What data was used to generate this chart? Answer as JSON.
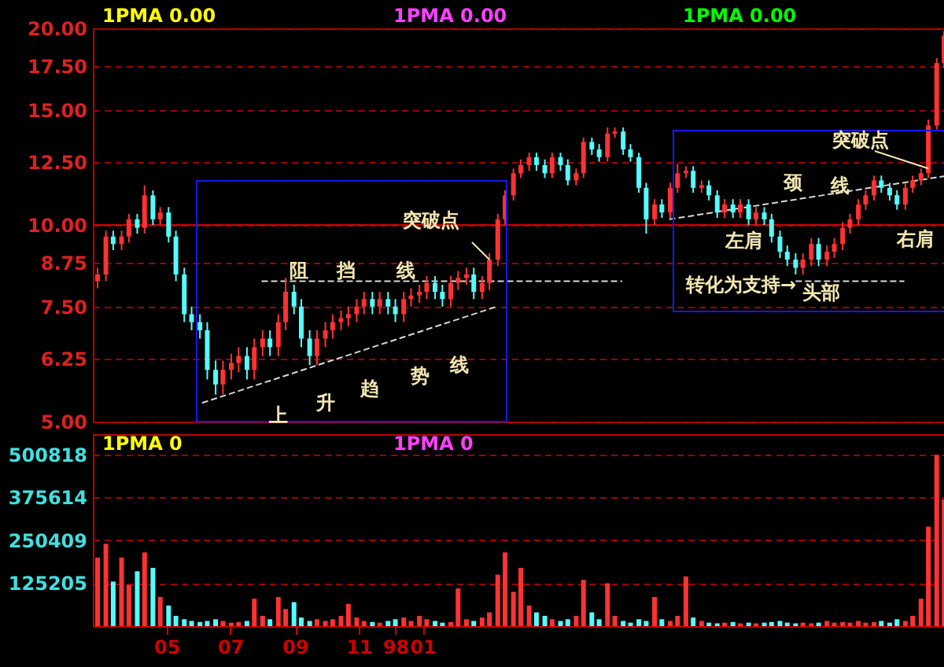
{
  "chart_data": [
    {
      "type": "candlestick",
      "x": [
        "1997-02-24",
        "1997-03-04",
        "1997-03-11",
        "1997-03-19",
        "1997-03-26",
        "1997-04-03",
        "1997-04-10",
        "1997-04-18",
        "1997-04-25",
        "1997-05-03",
        "1997-05-10",
        "1997-05-18",
        "1997-05-25",
        "1997-06-02",
        "1997-06-09",
        "1997-06-17",
        "1997-06-24",
        "1997-07-02",
        "1997-07-09",
        "1997-07-17",
        "1997-07-24",
        "1997-08-01",
        "1997-08-08",
        "1997-08-16",
        "1997-08-23",
        "1997-08-31",
        "1997-09-07",
        "1997-09-15",
        "1997-09-22",
        "1997-09-30",
        "1997-10-07",
        "1997-10-15",
        "1997-10-22",
        "1997-10-30",
        "1997-11-06",
        "1997-11-14",
        "1997-11-21",
        "1997-11-29",
        "1997-12-06",
        "1997-12-14",
        "1997-12-21",
        "1997-12-29",
        "1998-01-05",
        "1998-01-13",
        "1998-01-20",
        "1998-01-28",
        "1998-02-04",
        "1998-02-12",
        "1998-02-19",
        "1998-02-27",
        "1998-03-06",
        "1998-03-14",
        "1998-03-21",
        "1998-03-29",
        "1998-04-05",
        "1998-04-13",
        "1998-04-20",
        "1998-04-28",
        "1998-05-05",
        "1998-05-13",
        "1998-05-20",
        "1998-05-28",
        "1998-06-04",
        "1998-06-12",
        "1998-06-19",
        "1998-06-27",
        "1998-07-04",
        "1998-07-12",
        "1998-07-19",
        "1998-07-27",
        "1998-08-03",
        "1998-08-11",
        "1998-08-18",
        "1998-08-26",
        "1998-09-02",
        "1998-09-10",
        "1998-09-17",
        "1998-09-25",
        "1998-10-02",
        "1998-10-10",
        "1998-10-17",
        "1998-10-25",
        "1998-11-01",
        "1998-11-09",
        "1998-11-16",
        "1998-11-24",
        "1998-12-01",
        "1998-12-09",
        "1998-12-16",
        "1998-12-24",
        "1998-12-31",
        "1999-01-08",
        "1999-01-15",
        "1999-01-23",
        "1999-01-30",
        "1999-02-07",
        "1999-02-14",
        "1999-02-22",
        "1999-03-01",
        "1999-03-09",
        "1999-03-16",
        "1999-03-24",
        "1999-03-31",
        "1999-04-08",
        "1999-04-15",
        "1999-04-23",
        "1999-04-30",
        "1999-05-08",
        "1999-05-15"
      ],
      "ohlc": [
        [
          8.2,
          8.6,
          8.0,
          8.4
        ],
        [
          8.4,
          9.8,
          8.2,
          9.6
        ],
        [
          9.6,
          9.8,
          9.15,
          9.35
        ],
        [
          9.35,
          9.8,
          9.15,
          9.6
        ],
        [
          9.6,
          10.4,
          9.4,
          10.2
        ],
        [
          10.2,
          10.4,
          9.7,
          9.9
        ],
        [
          9.9,
          11.5,
          9.7,
          11.1
        ],
        [
          11.1,
          11.3,
          10.0,
          10.2
        ],
        [
          10.2,
          10.65,
          10.0,
          10.45
        ],
        [
          10.45,
          10.65,
          9.4,
          9.6
        ],
        [
          9.6,
          9.8,
          8.2,
          8.4
        ],
        [
          8.4,
          8.6,
          7.1,
          7.3
        ],
        [
          7.3,
          7.5,
          6.9,
          7.1
        ],
        [
          7.1,
          7.3,
          6.7,
          6.9
        ],
        [
          6.9,
          7.1,
          5.8,
          6.0
        ],
        [
          6.0,
          6.2,
          5.5,
          5.7
        ],
        [
          5.7,
          6.2,
          5.5,
          6.0
        ],
        [
          6.0,
          6.35,
          5.8,
          6.15
        ],
        [
          6.15,
          6.5,
          5.95,
          6.3
        ],
        [
          6.3,
          6.5,
          5.8,
          6.0
        ],
        [
          6.0,
          6.7,
          5.8,
          6.5
        ],
        [
          6.5,
          6.9,
          6.3,
          6.7
        ],
        [
          6.7,
          6.9,
          6.3,
          6.5
        ],
        [
          6.5,
          7.3,
          6.3,
          7.1
        ],
        [
          7.1,
          8.3,
          6.9,
          7.9
        ],
        [
          7.9,
          8.1,
          7.3,
          7.5
        ],
        [
          7.5,
          7.7,
          6.5,
          6.7
        ],
        [
          6.7,
          6.9,
          6.1,
          6.3
        ],
        [
          6.3,
          6.9,
          6.1,
          6.7
        ],
        [
          6.7,
          7.1,
          6.5,
          6.9
        ],
        [
          6.9,
          7.3,
          6.7,
          7.1
        ],
        [
          7.1,
          7.4,
          6.9,
          7.2
        ],
        [
          7.2,
          7.5,
          7.0,
          7.3
        ],
        [
          7.3,
          7.7,
          7.1,
          7.5
        ],
        [
          7.5,
          7.9,
          7.3,
          7.7
        ],
        [
          7.7,
          7.9,
          7.3,
          7.5
        ],
        [
          7.5,
          7.9,
          7.3,
          7.7
        ],
        [
          7.7,
          7.9,
          7.3,
          7.5
        ],
        [
          7.5,
          7.7,
          7.1,
          7.3
        ],
        [
          7.3,
          7.9,
          7.1,
          7.7
        ],
        [
          7.7,
          8.0,
          7.5,
          7.8
        ],
        [
          7.8,
          8.1,
          7.6,
          7.9
        ],
        [
          7.9,
          8.35,
          7.7,
          8.15
        ],
        [
          8.15,
          8.35,
          7.7,
          7.9
        ],
        [
          7.9,
          8.1,
          7.5,
          7.7
        ],
        [
          7.7,
          8.35,
          7.5,
          8.15
        ],
        [
          8.15,
          8.5,
          7.95,
          8.3
        ],
        [
          8.3,
          8.6,
          8.1,
          8.4
        ],
        [
          8.4,
          8.6,
          7.7,
          7.9
        ],
        [
          7.9,
          8.35,
          7.7,
          8.15
        ],
        [
          8.15,
          9.05,
          7.95,
          8.85
        ],
        [
          8.85,
          10.4,
          8.65,
          10.2
        ],
        [
          10.2,
          11.3,
          10.0,
          11.1
        ],
        [
          11.1,
          12.2,
          10.9,
          12.0
        ],
        [
          12.0,
          12.6,
          11.8,
          12.35
        ],
        [
          12.35,
          12.9,
          12.1,
          12.7
        ],
        [
          12.7,
          12.9,
          12.1,
          12.35
        ],
        [
          12.35,
          12.6,
          11.8,
          12.0
        ],
        [
          12.0,
          12.9,
          11.8,
          12.7
        ],
        [
          12.7,
          12.9,
          12.1,
          12.35
        ],
        [
          12.35,
          12.6,
          11.5,
          11.7
        ],
        [
          11.7,
          12.2,
          11.5,
          12.0
        ],
        [
          12.0,
          13.6,
          11.8,
          13.4
        ],
        [
          13.4,
          13.6,
          12.8,
          13.05
        ],
        [
          13.05,
          13.3,
          12.5,
          12.7
        ],
        [
          12.7,
          14.1,
          12.5,
          13.8
        ],
        [
          13.8,
          14.1,
          13.6,
          13.9
        ],
        [
          13.9,
          14.1,
          12.8,
          13.05
        ],
        [
          13.05,
          13.3,
          12.5,
          12.7
        ],
        [
          12.7,
          12.9,
          11.2,
          11.4
        ],
        [
          11.4,
          11.6,
          9.7,
          10.2
        ],
        [
          10.2,
          10.95,
          10.0,
          10.75
        ],
        [
          10.75,
          10.95,
          10.25,
          10.45
        ],
        [
          10.45,
          11.6,
          10.25,
          11.4
        ],
        [
          11.4,
          12.4,
          11.2,
          12.0
        ],
        [
          12.0,
          12.3,
          11.8,
          12.1
        ],
        [
          12.1,
          12.3,
          11.2,
          11.4
        ],
        [
          11.4,
          11.7,
          11.2,
          11.5
        ],
        [
          11.5,
          11.7,
          10.9,
          11.1
        ],
        [
          11.1,
          11.3,
          10.25,
          10.45
        ],
        [
          10.45,
          10.95,
          10.25,
          10.75
        ],
        [
          10.75,
          10.95,
          10.25,
          10.45
        ],
        [
          10.45,
          10.95,
          10.25,
          10.75
        ],
        [
          10.75,
          10.95,
          10.0,
          10.2
        ],
        [
          10.2,
          10.65,
          10.0,
          10.45
        ],
        [
          10.45,
          10.65,
          10.0,
          10.2
        ],
        [
          10.2,
          10.4,
          9.4,
          9.6
        ],
        [
          9.6,
          9.8,
          8.9,
          9.1
        ],
        [
          9.1,
          9.3,
          8.65,
          8.85
        ],
        [
          8.85,
          9.05,
          8.4,
          8.6
        ],
        [
          8.6,
          9.05,
          8.4,
          8.85
        ],
        [
          8.85,
          9.55,
          8.65,
          9.35
        ],
        [
          9.35,
          9.55,
          8.65,
          8.85
        ],
        [
          8.85,
          9.3,
          8.65,
          9.1
        ],
        [
          9.1,
          9.55,
          8.9,
          9.35
        ],
        [
          9.35,
          10.1,
          9.15,
          9.9
        ],
        [
          9.9,
          10.4,
          9.7,
          10.2
        ],
        [
          10.2,
          10.95,
          10.0,
          10.75
        ],
        [
          10.75,
          11.3,
          10.55,
          11.1
        ],
        [
          11.1,
          11.9,
          10.9,
          11.7
        ],
        [
          11.7,
          11.9,
          11.2,
          11.4
        ],
        [
          11.4,
          11.6,
          10.9,
          11.1
        ],
        [
          11.1,
          11.3,
          10.55,
          10.75
        ],
        [
          10.75,
          11.6,
          10.55,
          11.4
        ],
        [
          11.4,
          11.9,
          11.2,
          11.7
        ],
        [
          11.7,
          12.2,
          11.5,
          12.0
        ],
        [
          12.0,
          14.5,
          11.8,
          14.2
        ],
        [
          14.2,
          18.0,
          14.0,
          17.7
        ],
        [
          17.7,
          19.8,
          17.4,
          19.5
        ]
      ],
      "colors": [
        "#ff3232",
        "#ff3232",
        "#54fcfc",
        "#ff3232",
        "#ff3232",
        "#54fcfc",
        "#ff3232",
        "#54fcfc",
        "#ff3232",
        "#54fcfc",
        "#54fcfc",
        "#54fcfc",
        "#54fcfc",
        "#54fcfc",
        "#54fcfc",
        "#54fcfc",
        "#ff3232",
        "#ff3232",
        "#ff3232",
        "#54fcfc",
        "#ff3232",
        "#ff3232",
        "#54fcfc",
        "#ff3232",
        "#ff3232",
        "#54fcfc",
        "#54fcfc",
        "#54fcfc",
        "#ff3232",
        "#ff3232",
        "#ff3232",
        "#ff3232",
        "#ff3232",
        "#ff3232",
        "#ff3232",
        "#54fcfc",
        "#ff3232",
        "#54fcfc",
        "#54fcfc",
        "#ff3232",
        "#ff3232",
        "#ff3232",
        "#ff3232",
        "#54fcfc",
        "#54fcfc",
        "#ff3232",
        "#ff3232",
        "#ff3232",
        "#54fcfc",
        "#ff3232",
        "#ff3232",
        "#ff3232",
        "#ff3232",
        "#ff3232",
        "#ff3232",
        "#ff3232",
        "#54fcfc",
        "#54fcfc",
        "#ff3232",
        "#54fcfc",
        "#54fcfc",
        "#ff3232",
        "#ff3232",
        "#54fcfc",
        "#54fcfc",
        "#ff3232",
        "#ff3232",
        "#54fcfc",
        "#54fcfc",
        "#54fcfc",
        "#54fcfc",
        "#ff3232",
        "#54fcfc",
        "#ff3232",
        "#ff3232",
        "#ff3232",
        "#54fcfc",
        "#ff3232",
        "#54fcfc",
        "#54fcfc",
        "#ff3232",
        "#54fcfc",
        "#ff3232",
        "#54fcfc",
        "#ff3232",
        "#54fcfc",
        "#54fcfc",
        "#54fcfc",
        "#54fcfc",
        "#54fcfc",
        "#ff3232",
        "#ff3232",
        "#54fcfc",
        "#ff3232",
        "#ff3232",
        "#ff3232",
        "#ff3232",
        "#ff3232",
        "#ff3232",
        "#ff3232",
        "#54fcfc",
        "#54fcfc",
        "#54fcfc",
        "#ff3232",
        "#ff3232",
        "#ff3232",
        "#ff3232",
        "#ff3232",
        "#ff3232"
      ],
      "series": [
        {
          "type": "line",
          "color": "#d8d8d8",
          "line_style": "dashed",
          "x": [
            "1997-06-04",
            "1998-03-13"
          ],
          "values": [
            5.34,
            7.5
          ]
        },
        {
          "type": "line",
          "color": "#d8d8d8",
          "line_style": "dashed",
          "x": [
            "1997-07-31",
            "1998-07-11"
          ],
          "values": [
            8.2,
            8.2
          ]
        },
        {
          "type": "line",
          "color": "#d8d8d8",
          "line_style": "dashed",
          "x": [
            "1998-12-24",
            "1999-04-07"
          ],
          "values": [
            8.2,
            8.2
          ]
        },
        {
          "type": "line",
          "color": "#d8d8d8",
          "line_style": "dashed",
          "x": [
            "1998-08-25",
            "1999-05-19"
          ],
          "values": [
            10.2,
            11.9
          ]
        }
      ],
      "xlim": [
        "1997-02-19T12:00",
        "1999-05-19T12:00"
      ],
      "ylim": [
        5,
        20
      ],
      "yticks": [
        {
          "value": 5,
          "label": "5.00"
        },
        {
          "value": 6.25,
          "label": "6.25"
        },
        {
          "value": 7.5,
          "label": "7.50"
        },
        {
          "value": 8.75,
          "label": "8.75"
        },
        {
          "value": 10,
          "label": "10.00"
        },
        {
          "value": 12.5,
          "label": "12.50"
        },
        {
          "value": 15,
          "label": "15.00"
        },
        {
          "value": 17.5,
          "label": "17.50"
        },
        {
          "value": 20,
          "label": "20.00"
        }
      ],
      "log": true,
      "grid": "y",
      "tick_labels": "y",
      "ref_lines": [
        {
          "axis": "y",
          "value": 10,
          "color": "#d00000",
          "line_style": "solid"
        }
      ],
      "annotations": [
        "1PMA 0.00",
        "1PMA 0.00",
        "1PMA 0.00",
        "阻挡线",
        {
          "text": "突破点",
          "x": "1998-03-06",
          "y": 8.85
        },
        "上升趋势线",
        "转化为支持→",
        {
          "text": "突破点",
          "x": "1999-04-30",
          "y": 12.2
        },
        "颈线",
        "左肩",
        "头部",
        "右肩"
      ]
    },
    {
      "type": "bar",
      "x": [
        "1997-02-24",
        "1997-03-04",
        "1997-03-11",
        "1997-03-19",
        "1997-03-26",
        "1997-04-03",
        "1997-04-10",
        "1997-04-18",
        "1997-04-25",
        "1997-05-03",
        "1997-05-10",
        "1997-05-18",
        "1997-05-25",
        "1997-06-02",
        "1997-06-09",
        "1997-06-17",
        "1997-06-24",
        "1997-07-02",
        "1997-07-09",
        "1997-07-17",
        "1997-07-24",
        "1997-08-01",
        "1997-08-08",
        "1997-08-16",
        "1997-08-23",
        "1997-08-31",
        "1997-09-07",
        "1997-09-15",
        "1997-09-22",
        "1997-09-30",
        "1997-10-07",
        "1997-10-15",
        "1997-10-22",
        "1997-10-30",
        "1997-11-06",
        "1997-11-14",
        "1997-11-21",
        "1997-11-29",
        "1997-12-06",
        "1997-12-14",
        "1997-12-21",
        "1997-12-29",
        "1998-01-05",
        "1998-01-13",
        "1998-01-20",
        "1998-01-28",
        "1998-02-04",
        "1998-02-12",
        "1998-02-19",
        "1998-02-27",
        "1998-03-06",
        "1998-03-14",
        "1998-03-21",
        "1998-03-29",
        "1998-04-05",
        "1998-04-13",
        "1998-04-20",
        "1998-04-28",
        "1998-05-05",
        "1998-05-13",
        "1998-05-20",
        "1998-05-28",
        "1998-06-04",
        "1998-06-12",
        "1998-06-19",
        "1998-06-27",
        "1998-07-04",
        "1998-07-12",
        "1998-07-19",
        "1998-07-27",
        "1998-08-03",
        "1998-08-11",
        "1998-08-18",
        "1998-08-26",
        "1998-09-02",
        "1998-09-10",
        "1998-09-17",
        "1998-09-25",
        "1998-10-02",
        "1998-10-10",
        "1998-10-17",
        "1998-10-25",
        "1998-11-01",
        "1998-11-09",
        "1998-11-16",
        "1998-11-24",
        "1998-12-01",
        "1998-12-09",
        "1998-12-16",
        "1998-12-24",
        "1998-12-31",
        "1999-01-08",
        "1999-01-15",
        "1999-01-23",
        "1999-01-30",
        "1999-02-07",
        "1999-02-14",
        "1999-02-22",
        "1999-03-01",
        "1999-03-09",
        "1999-03-16",
        "1999-03-24",
        "1999-03-31",
        "1999-04-08",
        "1999-04-15",
        "1999-04-23",
        "1999-04-30",
        "1999-05-08",
        "1999-05-15"
      ],
      "values": [
        200000,
        240000,
        130000,
        200000,
        120000,
        160000,
        215000,
        170000,
        85000,
        60000,
        30000,
        20000,
        15000,
        12000,
        15000,
        20000,
        15000,
        10000,
        12000,
        15000,
        80000,
        30000,
        20000,
        85000,
        50000,
        70000,
        25000,
        15000,
        20000,
        15000,
        20000,
        30000,
        65000,
        25000,
        15000,
        12000,
        10000,
        15000,
        20000,
        25000,
        15000,
        30000,
        20000,
        15000,
        10000,
        12000,
        110000,
        20000,
        15000,
        25000,
        40000,
        150000,
        215000,
        100000,
        170000,
        60000,
        40000,
        30000,
        20000,
        15000,
        20000,
        30000,
        135000,
        40000,
        20000,
        125000,
        30000,
        15000,
        10000,
        20000,
        15000,
        85000,
        20000,
        15000,
        30000,
        145000,
        25000,
        15000,
        10000,
        8000,
        10000,
        12000,
        8000,
        10000,
        8000,
        10000,
        12000,
        15000,
        10000,
        8000,
        10000,
        8000,
        10000,
        15000,
        10000,
        12000,
        10000,
        15000,
        10000,
        12000,
        15000,
        10000,
        20000,
        15000,
        30000,
        80000,
        290000,
        500000,
        370000
      ],
      "colors": [
        "#ff3232",
        "#ff3232",
        "#54fcfc",
        "#ff3232",
        "#ff3232",
        "#54fcfc",
        "#ff3232",
        "#54fcfc",
        "#ff3232",
        "#54fcfc",
        "#54fcfc",
        "#54fcfc",
        "#54fcfc",
        "#54fcfc",
        "#54fcfc",
        "#54fcfc",
        "#ff3232",
        "#ff3232",
        "#ff3232",
        "#54fcfc",
        "#ff3232",
        "#ff3232",
        "#54fcfc",
        "#ff3232",
        "#ff3232",
        "#54fcfc",
        "#54fcfc",
        "#54fcfc",
        "#ff3232",
        "#ff3232",
        "#ff3232",
        "#ff3232",
        "#ff3232",
        "#ff3232",
        "#ff3232",
        "#54fcfc",
        "#ff3232",
        "#54fcfc",
        "#54fcfc",
        "#ff3232",
        "#ff3232",
        "#ff3232",
        "#ff3232",
        "#54fcfc",
        "#54fcfc",
        "#ff3232",
        "#ff3232",
        "#ff3232",
        "#54fcfc",
        "#ff3232",
        "#ff3232",
        "#ff3232",
        "#ff3232",
        "#ff3232",
        "#ff3232",
        "#ff3232",
        "#54fcfc",
        "#54fcfc",
        "#ff3232",
        "#54fcfc",
        "#54fcfc",
        "#ff3232",
        "#ff3232",
        "#54fcfc",
        "#54fcfc",
        "#ff3232",
        "#ff3232",
        "#54fcfc",
        "#54fcfc",
        "#54fcfc",
        "#54fcfc",
        "#ff3232",
        "#54fcfc",
        "#ff3232",
        "#ff3232",
        "#ff3232",
        "#54fcfc",
        "#ff3232",
        "#54fcfc",
        "#54fcfc",
        "#ff3232",
        "#54fcfc",
        "#ff3232",
        "#54fcfc",
        "#ff3232",
        "#54fcfc",
        "#54fcfc",
        "#54fcfc",
        "#54fcfc",
        "#54fcfc",
        "#ff3232",
        "#ff3232",
        "#54fcfc",
        "#ff3232",
        "#ff3232",
        "#ff3232",
        "#ff3232",
        "#ff3232",
        "#ff3232",
        "#ff3232",
        "#54fcfc",
        "#54fcfc",
        "#54fcfc",
        "#ff3232",
        "#ff3232",
        "#ff3232",
        "#ff3232",
        "#ff3232",
        "#ff3232"
      ],
      "xlim": [
        "1997-02-19T12:00",
        "1999-05-19T12:00"
      ],
      "xticks": [
        {
          "value": "1997-05-01",
          "label": "05"
        },
        {
          "value": "1997-07-01",
          "label": "07"
        },
        {
          "value": "1997-09-01",
          "label": "09"
        },
        {
          "value": "1997-11-01",
          "label": "11"
        },
        {
          "value": "1997-12-06",
          "label": "98"
        },
        {
          "value": "1998-01-01",
          "label": "01"
        }
      ],
      "ylim": [
        0,
        560000
      ],
      "yticks": [
        125205,
        250409,
        375614,
        500818
      ],
      "grid": "y",
      "annotations": [
        "1PMA 0",
        "1PMA 0"
      ]
    }
  ]
}
